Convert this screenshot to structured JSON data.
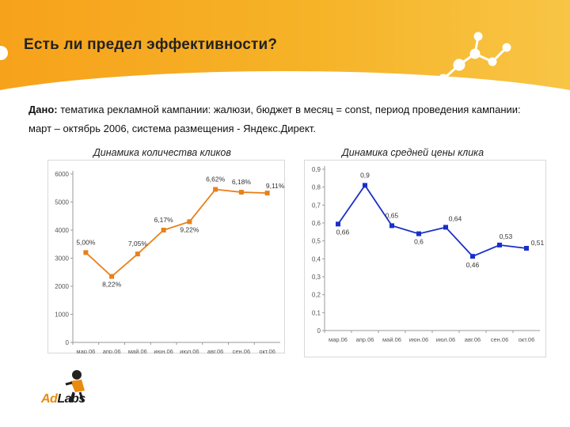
{
  "slide": {
    "title": "Есть ли предел эффективности?",
    "desc_label": "Дано:",
    "desc_text": " тематика рекламной кампании: жалюзи, бюджет в месяц = const, период проведения кампании: март – октябрь 2006, система размещения - Яндекс.Директ."
  },
  "logo": {
    "text_ad": "Ad",
    "text_labs": "Labs"
  },
  "colors": {
    "header": "#f7a21b",
    "orange_series": "#e8801a",
    "blue_series": "#1a2fc8"
  },
  "chart_data": [
    {
      "type": "line",
      "title": "Динамика количества кликов",
      "categories": [
        "мар.06",
        "апр.06",
        "май.06",
        "июн.06",
        "июл.06",
        "авг.06",
        "сен.06",
        "окт.06"
      ],
      "tick_labels": [
        "мар.06",
        "апр.06",
        "май.06",
        "июн.06",
        "июл.06",
        "авг.06",
        "сен.06",
        "окт.06"
      ],
      "series": [
        {
          "values": [
            3200,
            2350,
            3150,
            4000,
            4300,
            5450,
            5350,
            5320
          ]
        }
      ],
      "point_labels": [
        "5,00%",
        "8,22%",
        "7,05%",
        "6,17%",
        "9,22%",
        "6,62%",
        "6,18%",
        "9,11%"
      ],
      "yticks": [
        "6000",
        "5000",
        "4000",
        "3000",
        "2000",
        "1000",
        "0"
      ],
      "ylim": [
        0,
        6000
      ],
      "grid": false
    },
    {
      "type": "line",
      "title": "Динамика средней цены клика",
      "categories": [
        "мар.06",
        "апр.06",
        "май.06",
        "июн.06",
        "июл.06",
        "авг.06",
        "сен.06",
        "окт.06"
      ],
      "tick_labels": [
        "мар.06",
        "апр.06",
        "май.06",
        "июн.06",
        "июл.06",
        "авг.06",
        "сен.06",
        "окт.06"
      ],
      "series": [
        {
          "values": [
            0.66,
            0.9,
            0.65,
            0.6,
            0.64,
            0.46,
            0.53,
            0.51
          ]
        }
      ],
      "point_labels": [
        "0,66",
        "0,9",
        "0,65",
        "0,6",
        "0,64",
        "0,46",
        "0,53",
        "0,51"
      ],
      "yticks": [
        "0,9",
        "0,8",
        "0,7",
        "0,6",
        "0,5",
        "0,4",
        "0,3",
        "0,2",
        "0,1",
        "0"
      ],
      "ylim": [
        0,
        1.0
      ],
      "grid": false
    }
  ]
}
